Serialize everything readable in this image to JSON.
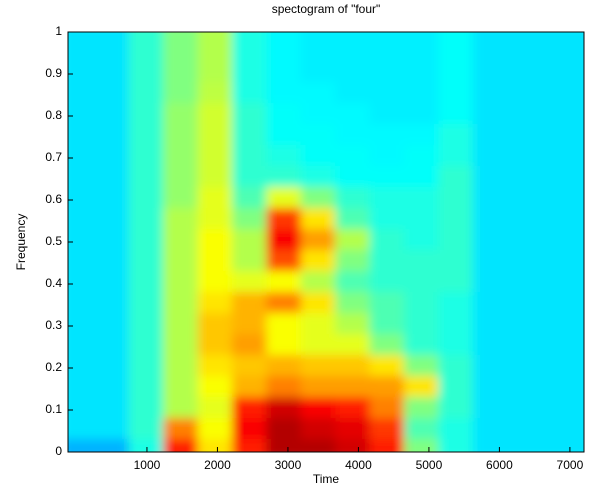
{
  "chart_data": {
    "type": "heatmap",
    "title": "spectogram of \"four\"",
    "xlabel": "Time",
    "ylabel": "Frequency",
    "colormap": "jet",
    "clim": [
      0,
      1
    ],
    "xlim": [
      -120,
      7200
    ],
    "xticks": [
      1000,
      2000,
      3000,
      4000,
      5000,
      6000,
      7000
    ],
    "ylim": [
      0,
      1
    ],
    "yticks": [
      0,
      0.1,
      0.2,
      0.3,
      0.4,
      0.5,
      0.6,
      0.7,
      0.8,
      0.9,
      1
    ],
    "values": [
      [
        0.3,
        0.3,
        0.4,
        0.85,
        0.65,
        0.85,
        0.95,
        0.95,
        0.92,
        0.85,
        0.5,
        0.4,
        0.35,
        0.35,
        0.35
      ],
      [
        0.35,
        0.35,
        0.42,
        0.75,
        0.62,
        0.88,
        0.95,
        0.92,
        0.9,
        0.82,
        0.45,
        0.4,
        0.35,
        0.35,
        0.35
      ],
      [
        0.35,
        0.35,
        0.42,
        0.55,
        0.6,
        0.85,
        0.92,
        0.88,
        0.85,
        0.75,
        0.5,
        0.42,
        0.35,
        0.35,
        0.35
      ],
      [
        0.35,
        0.35,
        0.42,
        0.55,
        0.62,
        0.7,
        0.75,
        0.72,
        0.72,
        0.72,
        0.65,
        0.42,
        0.35,
        0.35,
        0.35
      ],
      [
        0.35,
        0.35,
        0.42,
        0.55,
        0.65,
        0.68,
        0.7,
        0.68,
        0.68,
        0.65,
        0.5,
        0.42,
        0.35,
        0.35,
        0.35
      ],
      [
        0.35,
        0.35,
        0.42,
        0.55,
        0.68,
        0.72,
        0.62,
        0.6,
        0.6,
        0.5,
        0.42,
        0.4,
        0.35,
        0.35,
        0.35
      ],
      [
        0.35,
        0.35,
        0.42,
        0.55,
        0.68,
        0.7,
        0.62,
        0.6,
        0.55,
        0.45,
        0.42,
        0.4,
        0.35,
        0.35,
        0.35
      ],
      [
        0.35,
        0.35,
        0.42,
        0.55,
        0.65,
        0.7,
        0.75,
        0.65,
        0.5,
        0.45,
        0.42,
        0.4,
        0.35,
        0.35,
        0.35
      ],
      [
        0.35,
        0.35,
        0.42,
        0.55,
        0.62,
        0.6,
        0.62,
        0.55,
        0.45,
        0.42,
        0.42,
        0.42,
        0.35,
        0.35,
        0.35
      ],
      [
        0.35,
        0.35,
        0.42,
        0.55,
        0.62,
        0.55,
        0.8,
        0.65,
        0.5,
        0.42,
        0.42,
        0.42,
        0.35,
        0.35,
        0.35
      ],
      [
        0.35,
        0.35,
        0.42,
        0.55,
        0.62,
        0.55,
        0.88,
        0.72,
        0.55,
        0.42,
        0.4,
        0.42,
        0.35,
        0.35,
        0.35
      ],
      [
        0.35,
        0.35,
        0.42,
        0.55,
        0.6,
        0.5,
        0.82,
        0.65,
        0.45,
        0.4,
        0.4,
        0.42,
        0.35,
        0.35,
        0.35
      ],
      [
        0.35,
        0.35,
        0.42,
        0.52,
        0.6,
        0.45,
        0.6,
        0.5,
        0.42,
        0.4,
        0.4,
        0.42,
        0.35,
        0.35,
        0.35
      ],
      [
        0.35,
        0.35,
        0.42,
        0.52,
        0.58,
        0.42,
        0.42,
        0.4,
        0.38,
        0.38,
        0.38,
        0.42,
        0.35,
        0.35,
        0.35
      ],
      [
        0.35,
        0.35,
        0.42,
        0.52,
        0.58,
        0.42,
        0.4,
        0.38,
        0.38,
        0.37,
        0.38,
        0.4,
        0.35,
        0.35,
        0.35
      ],
      [
        0.35,
        0.35,
        0.42,
        0.52,
        0.58,
        0.42,
        0.38,
        0.38,
        0.37,
        0.37,
        0.37,
        0.4,
        0.35,
        0.35,
        0.35
      ],
      [
        0.35,
        0.35,
        0.42,
        0.52,
        0.58,
        0.42,
        0.38,
        0.37,
        0.37,
        0.36,
        0.36,
        0.38,
        0.35,
        0.35,
        0.35
      ],
      [
        0.35,
        0.35,
        0.42,
        0.5,
        0.56,
        0.4,
        0.37,
        0.37,
        0.36,
        0.36,
        0.36,
        0.38,
        0.35,
        0.35,
        0.35
      ],
      [
        0.35,
        0.35,
        0.42,
        0.5,
        0.55,
        0.4,
        0.37,
        0.36,
        0.36,
        0.36,
        0.36,
        0.38,
        0.35,
        0.35,
        0.35
      ],
      [
        0.35,
        0.35,
        0.42,
        0.5,
        0.55,
        0.4,
        0.37,
        0.36,
        0.36,
        0.36,
        0.36,
        0.38,
        0.35,
        0.35,
        0.35
      ]
    ]
  }
}
